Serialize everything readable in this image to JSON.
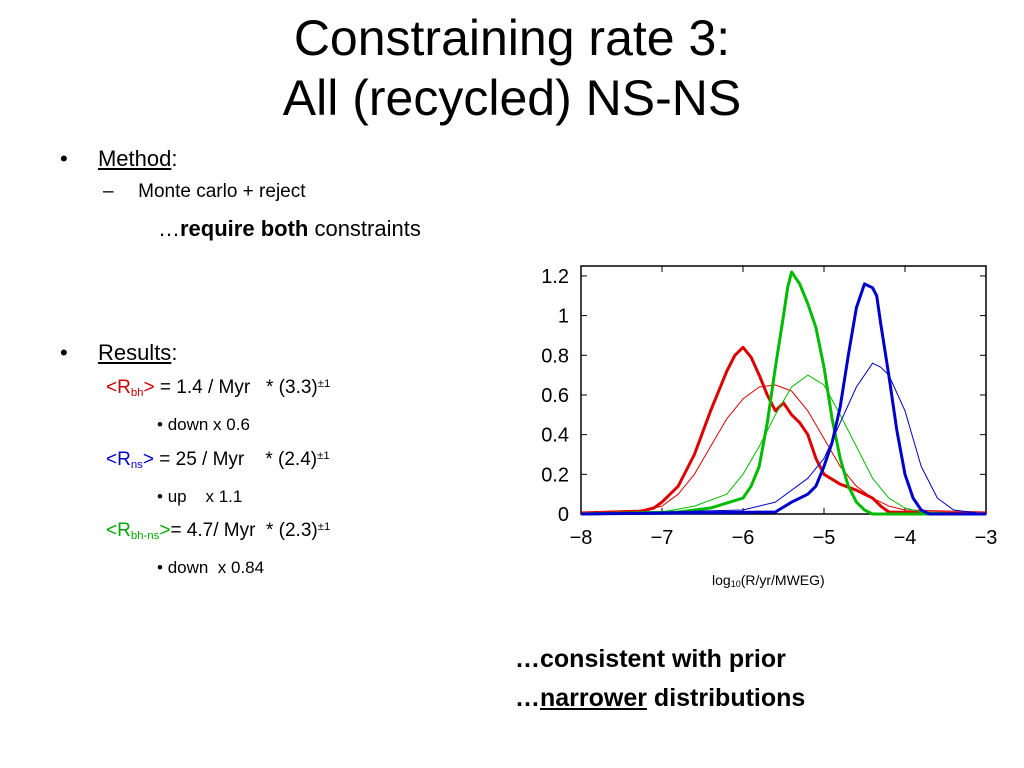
{
  "title": {
    "line1": "Constraining rate 3:",
    "line2": "All (recycled) NS-NS"
  },
  "method": {
    "bullet": "•",
    "label": "Method",
    "colon": ":",
    "dash": "–",
    "item1": "Monte carlo + reject",
    "item2_prefix": "…",
    "item2_bold": "require both",
    "item2_rest": " constraints"
  },
  "results": {
    "bullet": "•",
    "label": "Results",
    "colon": ":",
    "rows": [
      {
        "open": "<R",
        "sub": "bh",
        "close": ">",
        "color": "#cc0000",
        "text": " = 1.4 / Myr   * (3.3)",
        "pm": "±",
        "exp": "1",
        "note_bullet": "•",
        "note": "down x 0.6"
      },
      {
        "open": "<R",
        "sub": "ns",
        "close": ">",
        "color": "#0000cc",
        "text": " = 25 / Myr    * (2.4)",
        "pm": "±",
        "exp": "1",
        "note_bullet": "•",
        "note": "up    x 1.1"
      },
      {
        "open": "<R",
        "sub": "bh-ns",
        "close": ">",
        "color": "#00aa00",
        "text": "= 4.7/ Myr  * (2.3)",
        "pm": "±",
        "exp": "1",
        "note_bullet": "•",
        "note": "down  x 0.84"
      }
    ]
  },
  "chart_data": {
    "type": "line",
    "title": "",
    "xlabel_main": "log",
    "xlabel_sub": "10",
    "xlabel_rest": "(R/yr/MWEG)",
    "ylabel": "",
    "xlim": [
      -8,
      -3
    ],
    "ylim": [
      0,
      1.25
    ],
    "xticks": [
      "−8",
      "−7",
      "−6",
      "−5",
      "−4",
      "−3"
    ],
    "xtick_values": [
      -8,
      -7,
      -6,
      -5,
      -4,
      -3
    ],
    "yticks": [
      "0",
      "0.2",
      "0.4",
      "0.6",
      "0.8",
      "1",
      "1.2"
    ],
    "ytick_values": [
      0,
      0.2,
      0.4,
      0.6,
      0.8,
      1,
      1.2
    ],
    "grid": false,
    "series": [
      {
        "color": "#dd0000",
        "width": 1,
        "x": [
          -8,
          -7.2,
          -7,
          -6.8,
          -6.6,
          -6.4,
          -6.2,
          -6,
          -5.8,
          -5.6,
          -5.4,
          -5.2,
          -5,
          -4.8,
          -4.6,
          -4.4,
          -4.2,
          -4,
          -3
        ],
        "y": [
          0.01,
          0.02,
          0.04,
          0.1,
          0.2,
          0.34,
          0.48,
          0.58,
          0.64,
          0.65,
          0.62,
          0.52,
          0.38,
          0.24,
          0.14,
          0.08,
          0.04,
          0.02,
          0.01
        ]
      },
      {
        "color": "#dd0000",
        "width": 3,
        "x": [
          -8,
          -7.3,
          -7.1,
          -7,
          -6.8,
          -6.6,
          -6.4,
          -6.2,
          -6.1,
          -6,
          -5.9,
          -5.8,
          -5.7,
          -5.6,
          -5.5,
          -5.4,
          -5.3,
          -5.2,
          -5.1,
          -5,
          -4.8,
          -4.6,
          -4.4,
          -4.3,
          -4.2,
          -3
        ],
        "y": [
          0,
          0.01,
          0.03,
          0.06,
          0.14,
          0.3,
          0.52,
          0.72,
          0.8,
          0.84,
          0.79,
          0.7,
          0.6,
          0.52,
          0.56,
          0.5,
          0.46,
          0.4,
          0.28,
          0.2,
          0.15,
          0.12,
          0.08,
          0.04,
          0.01,
          0
        ]
      },
      {
        "color": "#00bb00",
        "width": 1,
        "x": [
          -8,
          -7,
          -6.6,
          -6.2,
          -6,
          -5.8,
          -5.6,
          -5.4,
          -5.2,
          -5,
          -4.8,
          -4.6,
          -4.4,
          -4.2,
          -4,
          -3.8,
          -3
        ],
        "y": [
          0,
          0.01,
          0.04,
          0.1,
          0.2,
          0.34,
          0.5,
          0.64,
          0.7,
          0.65,
          0.5,
          0.34,
          0.18,
          0.08,
          0.03,
          0.01,
          0
        ]
      },
      {
        "color": "#00bb00",
        "width": 3,
        "x": [
          -8,
          -6.8,
          -6.4,
          -6,
          -5.9,
          -5.8,
          -5.7,
          -5.6,
          -5.5,
          -5.45,
          -5.4,
          -5.35,
          -5.3,
          -5.2,
          -5.1,
          -5,
          -4.9,
          -4.8,
          -4.7,
          -4.6,
          -4.5,
          -4.4,
          -3
        ],
        "y": [
          0,
          0.01,
          0.03,
          0.08,
          0.14,
          0.24,
          0.46,
          0.74,
          1.0,
          1.14,
          1.22,
          1.19,
          1.16,
          1.06,
          0.94,
          0.74,
          0.48,
          0.28,
          0.14,
          0.06,
          0.02,
          0,
          0
        ]
      },
      {
        "color": "#0000cc",
        "width": 1,
        "x": [
          -8,
          -6,
          -5.6,
          -5.2,
          -5,
          -4.8,
          -4.6,
          -4.4,
          -4.3,
          -4.2,
          -4,
          -3.9,
          -3.8,
          -3.6,
          -3.4,
          -3
        ],
        "y": [
          0,
          0.02,
          0.06,
          0.18,
          0.28,
          0.46,
          0.64,
          0.76,
          0.74,
          0.7,
          0.52,
          0.38,
          0.24,
          0.08,
          0.02,
          0
        ]
      },
      {
        "color": "#0000cc",
        "width": 3,
        "x": [
          -8,
          -5.6,
          -5.4,
          -5.2,
          -5.1,
          -5,
          -4.9,
          -4.8,
          -4.7,
          -4.6,
          -4.5,
          -4.4,
          -4.35,
          -4.3,
          -4.2,
          -4.1,
          -4,
          -3.9,
          -3.8,
          -3.7,
          -3
        ],
        "y": [
          0,
          0.01,
          0.06,
          0.1,
          0.14,
          0.24,
          0.36,
          0.54,
          0.8,
          1.04,
          1.16,
          1.14,
          1.1,
          0.96,
          0.7,
          0.42,
          0.2,
          0.08,
          0.02,
          0,
          0
        ]
      }
    ]
  },
  "conclusion": {
    "line1": "…consistent with prior",
    "line2_prefix": "…",
    "line2_underlined": "narrower",
    "line2_rest": " distributions"
  }
}
